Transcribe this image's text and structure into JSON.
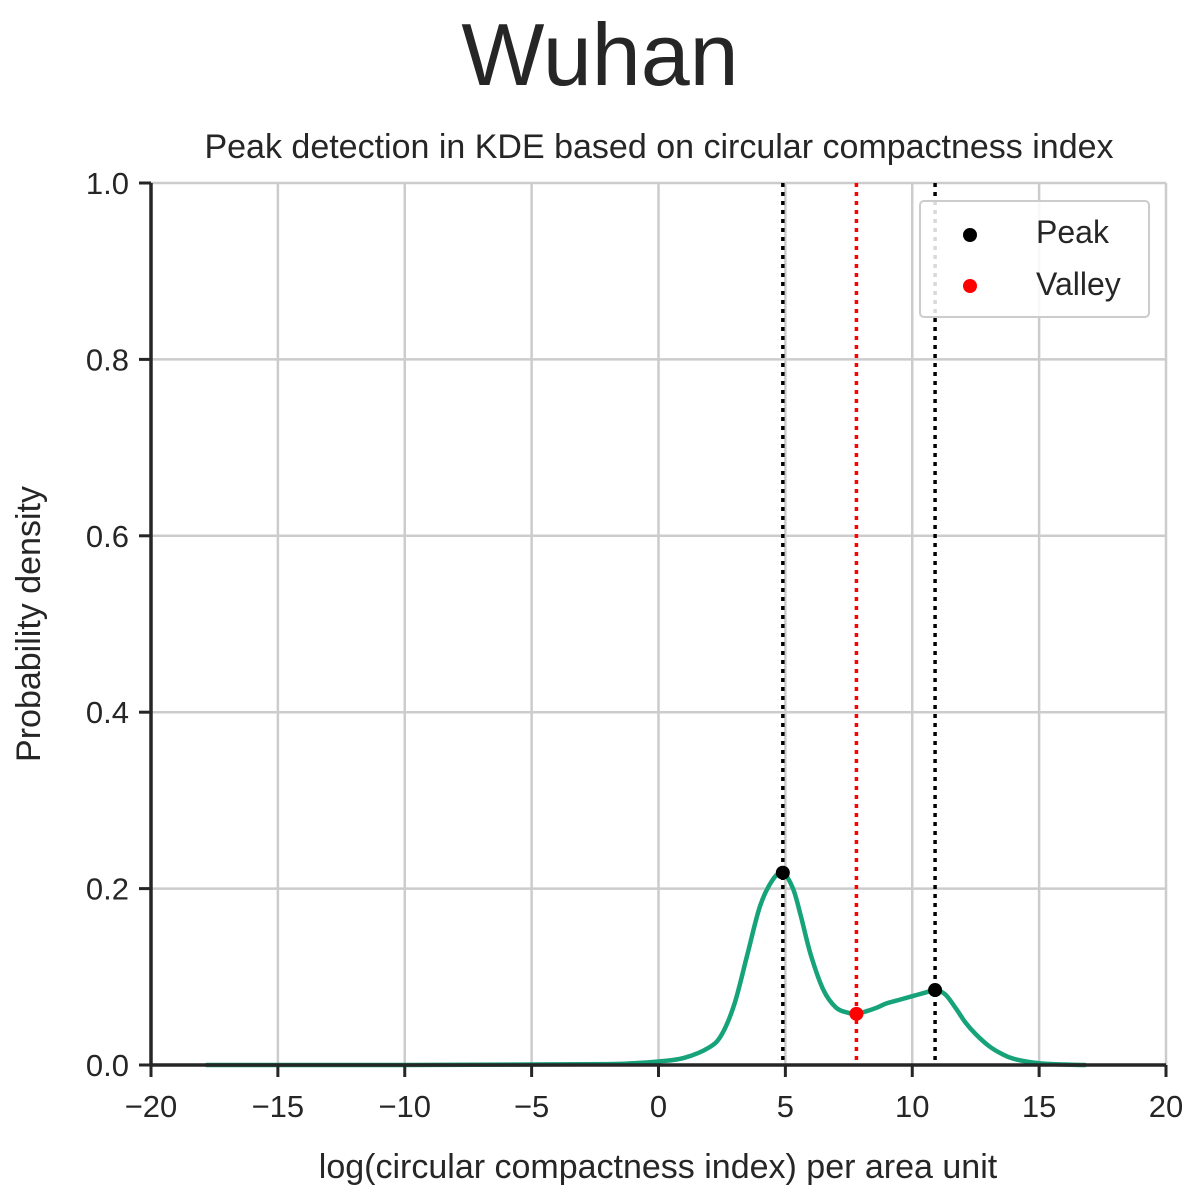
{
  "chart_data": {
    "type": "line",
    "title": "Wuhan",
    "subtitle": "Peak detection in KDE based on circular compactness index",
    "xlabel": "log(circular compactness index) per area unit",
    "ylabel": "Probability density",
    "xlim": [
      -20,
      20
    ],
    "ylim": [
      0,
      1
    ],
    "xticks": [
      -20,
      -15,
      -10,
      -5,
      0,
      5,
      10,
      15,
      20
    ],
    "xtick_labels": [
      "−20",
      "−15",
      "−10",
      "−5",
      "0",
      "5",
      "10",
      "15",
      "20"
    ],
    "yticks": [
      0,
      0.2,
      0.4,
      0.6,
      0.8,
      1.0
    ],
    "ytick_labels": [
      "0.0",
      "0.2",
      "0.4",
      "0.6",
      "0.8",
      "1.0"
    ],
    "grid": true,
    "legend_position": "top-right",
    "series": [
      {
        "kind": "kde",
        "color": "#16a37a",
        "x": [
          -17.8,
          -10,
          -5,
          -2,
          -1,
          0,
          1,
          2,
          2.5,
          3,
          3.5,
          4,
          4.5,
          4.9,
          5.3,
          5.6,
          6,
          6.5,
          7,
          7.5,
          7.8,
          8.2,
          8.6,
          9,
          9.5,
          10,
          10.5,
          10.9,
          11.3,
          11.7,
          12.1,
          12.5,
          13,
          13.5,
          14,
          15,
          16,
          16.8
        ],
        "y": [
          0.0,
          0.0,
          0.0005,
          0.001,
          0.002,
          0.004,
          0.008,
          0.02,
          0.035,
          0.07,
          0.125,
          0.18,
          0.21,
          0.218,
          0.2,
          0.17,
          0.125,
          0.085,
          0.065,
          0.059,
          0.058,
          0.061,
          0.065,
          0.07,
          0.074,
          0.078,
          0.082,
          0.085,
          0.08,
          0.065,
          0.048,
          0.035,
          0.022,
          0.013,
          0.007,
          0.002,
          0.0005,
          0.0
        ]
      }
    ],
    "peaks": {
      "name": "Peak",
      "color": "#000000",
      "points": [
        {
          "x": 4.9,
          "y": 0.218
        },
        {
          "x": 10.9,
          "y": 0.085
        }
      ]
    },
    "valleys": {
      "name": "Valley",
      "color": "#ff0000",
      "points": [
        {
          "x": 7.8,
          "y": 0.058
        }
      ]
    }
  }
}
